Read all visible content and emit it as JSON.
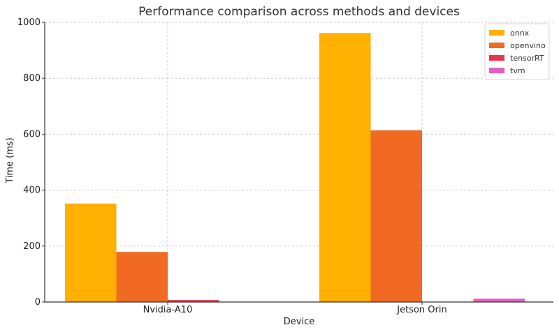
{
  "chart_data": {
    "type": "bar",
    "title": "Performance comparison across methods and devices",
    "xlabel": "Device",
    "ylabel": "Time (ms)",
    "categories": [
      "Nvidia-A10",
      "Jetson Orin"
    ],
    "series": [
      {
        "name": "onnx",
        "values": [
          352,
          962
        ],
        "color": "#FFB000"
      },
      {
        "name": "openvino",
        "values": [
          179,
          614
        ],
        "color": "#F06A24"
      },
      {
        "name": "tensorRT",
        "values": [
          7,
          0
        ],
        "color": "#E8334F"
      },
      {
        "name": "tvm",
        "values": [
          0,
          12
        ],
        "color": "#E65FC0"
      }
    ],
    "ylim": [
      0,
      1000
    ],
    "yticks": [
      "0",
      "200",
      "400",
      "600",
      "800",
      "1000"
    ],
    "grid": true,
    "legend_position": "top-right"
  }
}
